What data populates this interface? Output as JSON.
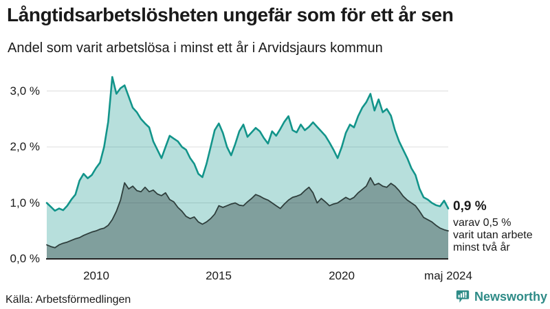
{
  "header": {
    "title": "Långtidsarbetslösheten ungefär som för ett år sen",
    "subtitle": "Andel som varit arbetslösa i minst ett år i Arvidsjaurs kommun"
  },
  "chart_data": {
    "type": "area",
    "title": "Långtidsarbetslösheten ungefär som för ett år sen",
    "subtitle": "Andel som varit arbetslösa i minst ett år i Arvidsjaurs kommun",
    "region": "Arvidsjaurs kommun",
    "x_start": "2008-01",
    "x_end": "2024-05",
    "point_interval_months": 2,
    "unit": "%",
    "ylim": [
      0,
      3.4
    ],
    "grid": true,
    "legend_position": "none",
    "grid_color": "#dcdcdc",
    "baseline_color": "#222222",
    "yticks": [
      {
        "pct": 3.0,
        "label": "3,0 %"
      },
      {
        "pct": 2.0,
        "label": "2,0 %"
      },
      {
        "pct": 1.0,
        "label": "1,0 %"
      },
      {
        "pct": 0.0,
        "label": "0,0 %"
      }
    ],
    "xticks": [
      {
        "label": "2010"
      },
      {
        "label": "2015"
      },
      {
        "label": "2020"
      },
      {
        "label": "maj 2024"
      }
    ],
    "series": [
      {
        "name": "Arbetslösa minst ett år",
        "color": "#12948a",
        "fill": "rgba(18,148,138,0.30)",
        "stroke_width": 2.6,
        "latest_value": 0.9,
        "values": [
          1.0,
          0.93,
          0.86,
          0.9,
          0.87,
          0.95,
          1.06,
          1.15,
          1.4,
          1.52,
          1.44,
          1.5,
          1.62,
          1.72,
          2.0,
          2.45,
          3.25,
          2.95,
          3.05,
          3.1,
          2.9,
          2.7,
          2.62,
          2.5,
          2.42,
          2.35,
          2.1,
          1.95,
          1.8,
          2.0,
          2.2,
          2.15,
          2.1,
          2.0,
          1.95,
          1.8,
          1.7,
          1.52,
          1.46,
          1.7,
          2.0,
          2.3,
          2.42,
          2.25,
          2.0,
          1.85,
          2.05,
          2.28,
          2.4,
          2.18,
          2.26,
          2.34,
          2.28,
          2.16,
          2.06,
          2.28,
          2.2,
          2.32,
          2.45,
          2.55,
          2.3,
          2.26,
          2.4,
          2.3,
          2.36,
          2.44,
          2.36,
          2.28,
          2.2,
          2.08,
          1.95,
          1.8,
          2.0,
          2.25,
          2.4,
          2.35,
          2.55,
          2.7,
          2.8,
          2.95,
          2.65,
          2.85,
          2.62,
          2.68,
          2.56,
          2.3,
          2.1,
          1.95,
          1.8,
          1.62,
          1.5,
          1.25,
          1.1,
          1.06,
          1.0,
          0.96,
          0.94,
          1.04,
          0.9
        ]
      },
      {
        "name": "varav arbetslösa minst två år",
        "color": "#2e3e3c",
        "fill": "rgba(40,56,54,0.38)",
        "stroke_width": 1.8,
        "latest_value": 0.5,
        "values": [
          0.25,
          0.22,
          0.2,
          0.25,
          0.28,
          0.3,
          0.33,
          0.36,
          0.38,
          0.42,
          0.45,
          0.48,
          0.5,
          0.53,
          0.55,
          0.6,
          0.7,
          0.85,
          1.05,
          1.36,
          1.25,
          1.3,
          1.22,
          1.2,
          1.28,
          1.2,
          1.23,
          1.16,
          1.13,
          1.18,
          1.06,
          1.02,
          0.92,
          0.85,
          0.76,
          0.72,
          0.75,
          0.66,
          0.62,
          0.66,
          0.72,
          0.8,
          0.95,
          0.92,
          0.95,
          0.98,
          1.0,
          0.96,
          0.95,
          1.02,
          1.08,
          1.15,
          1.12,
          1.08,
          1.05,
          1.0,
          0.95,
          0.9,
          0.98,
          1.05,
          1.1,
          1.12,
          1.15,
          1.22,
          1.28,
          1.18,
          1.0,
          1.08,
          1.02,
          0.95,
          0.98,
          1.0,
          1.05,
          1.1,
          1.06,
          1.1,
          1.18,
          1.24,
          1.3,
          1.45,
          1.32,
          1.35,
          1.3,
          1.28,
          1.35,
          1.3,
          1.22,
          1.12,
          1.05,
          1.0,
          0.95,
          0.85,
          0.74,
          0.7,
          0.66,
          0.6,
          0.55,
          0.52,
          0.5
        ]
      }
    ]
  },
  "annotation": {
    "value": "0,9 %",
    "line1": "varav 0,5 %",
    "line2": "varit utan arbete",
    "line3": "minst två år"
  },
  "footer": {
    "source": "Källa: Arbetsförmedlingen",
    "logo_text": "Newsworthy",
    "logo_color": "#2e8b87",
    "logo_icon": "chart-speech-bubble-icon"
  }
}
